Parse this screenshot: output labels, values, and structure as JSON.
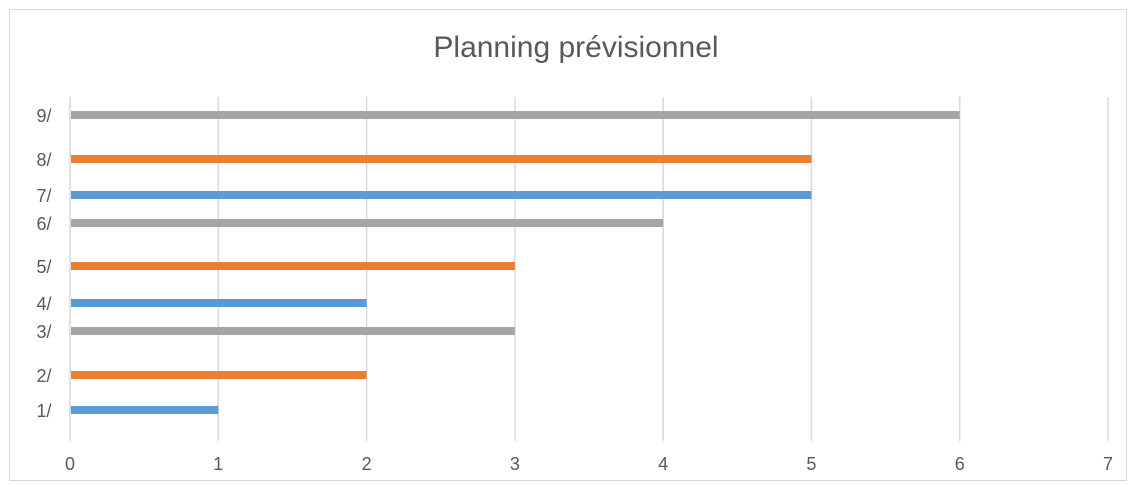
{
  "chart_data": {
    "type": "bar",
    "orientation": "horizontal",
    "title": "Planning prévisionnel",
    "xlabel": "",
    "ylabel": "",
    "xlim": [
      0,
      7
    ],
    "x_ticks": [
      "0",
      "1",
      "2",
      "3",
      "4",
      "5",
      "6",
      "7"
    ],
    "categories": [
      "1/",
      "2/",
      "3/",
      "4/",
      "5/",
      "6/",
      "7/",
      "8/",
      "9/"
    ],
    "series": [
      {
        "color": "#5b9bd5",
        "values": [
          1,
          null,
          null,
          2,
          null,
          null,
          5,
          null,
          null
        ]
      },
      {
        "color": "#ed7d31",
        "values": [
          null,
          2,
          null,
          null,
          3,
          null,
          null,
          5,
          null
        ]
      },
      {
        "color": "#a5a5a5",
        "values": [
          null,
          null,
          3,
          null,
          null,
          4,
          null,
          null,
          6
        ]
      }
    ],
    "grid": "vertical",
    "legend": "none",
    "gridline_color": "#d9d9d9",
    "text_color": "#595959"
  }
}
